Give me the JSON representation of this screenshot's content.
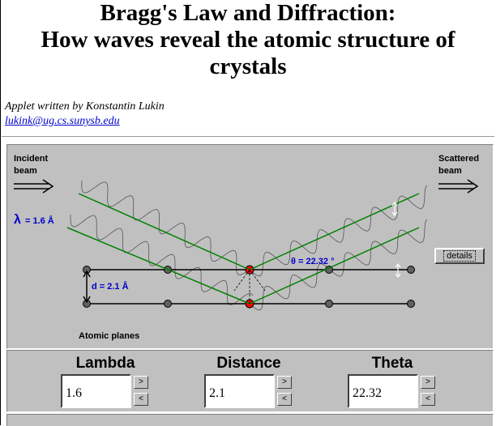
{
  "header": {
    "title_line1": "Bragg's Law and Diffraction:",
    "title_line2": "How waves reveal the atomic structure of",
    "title_line3": "crystals"
  },
  "credit": {
    "text": "Applet written by Konstantin Lukin",
    "email": "lukink@ug.cs.sunysb.edu"
  },
  "applet": {
    "incident_line1": "Incident",
    "incident_line2": "beam",
    "scattered_line1": "Scattered",
    "scattered_line2": "beam",
    "lambda_symbol": "λ",
    "lambda_text": "= 1.6  Å",
    "distance_text": "d = 2.1  Å",
    "theta_text": "θ = 22.32 °",
    "atomic_planes": "Atomic planes",
    "details_label": "details",
    "colors": {
      "beam": "#008000",
      "atom": "#606060",
      "scatter_atom": "#ff0000",
      "label": "#0000cc"
    }
  },
  "controls": {
    "lambda": {
      "label": "Lambda",
      "value": "1.6",
      "up": ">",
      "down": "<"
    },
    "distance": {
      "label": "Distance",
      "value": "2.1",
      "up": ">",
      "down": "<"
    },
    "theta": {
      "label": "Theta",
      "value": "22.32",
      "up": ">",
      "down": "<"
    }
  }
}
